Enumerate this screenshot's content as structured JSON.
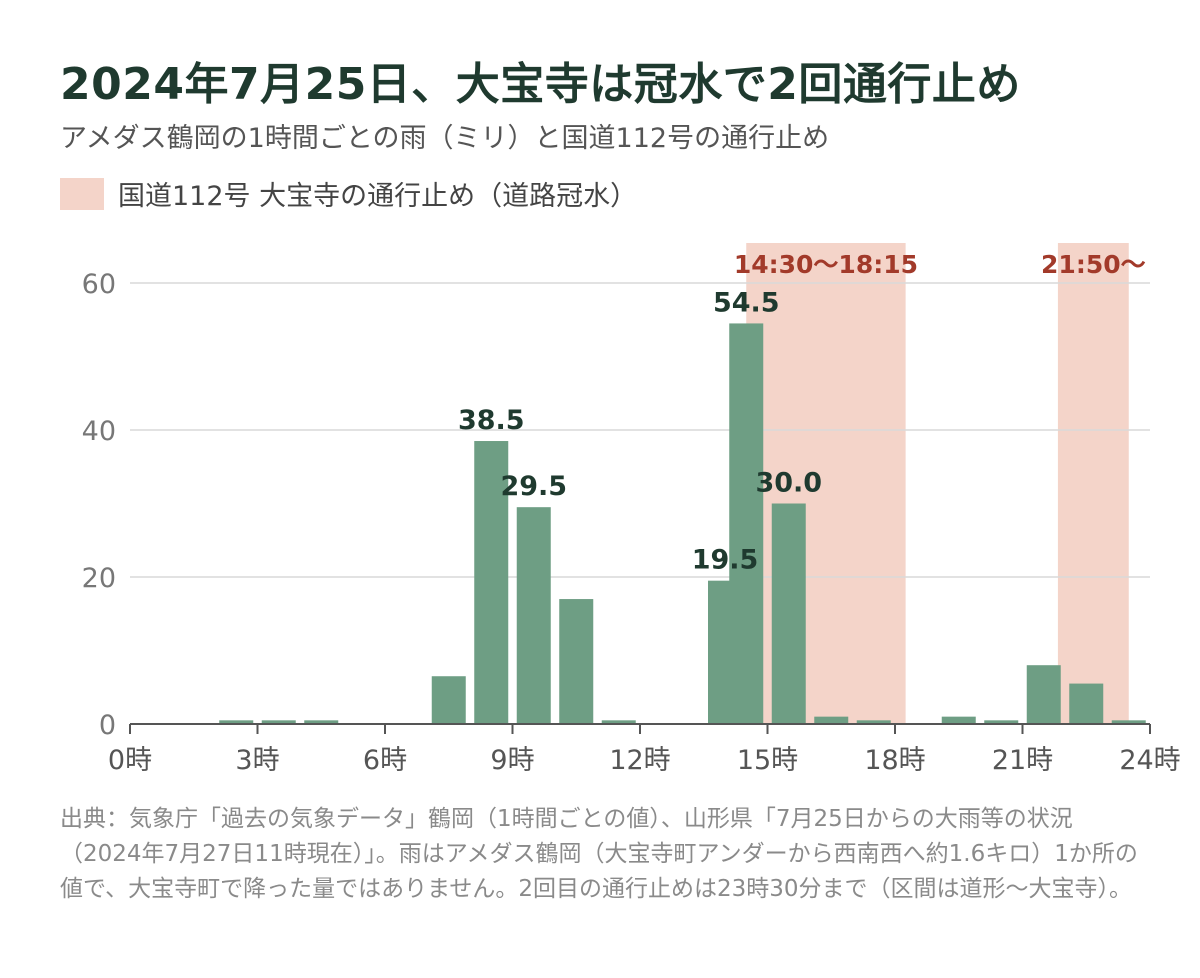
{
  "title": "2024年7月25日、大宝寺は冠水で2回通行止め",
  "subtitle": "アメダス鶴岡の1時間ごとの雨（ミリ）と国道112号の通行止め",
  "legend": {
    "label": "国道112号 大宝寺の通行止め（道路冠水）",
    "color": "#f4d4c9"
  },
  "source": "出典：気象庁「過去の気象データ」鶴岡（1時間ごとの値）、山形県「7月25日からの大雨等の状況（2024年7月27日11時現在）」。雨はアメダス鶴岡（大宝寺町アンダーから西南西へ約1.6キロ）1か所の値で、大宝寺町で降った量ではありません。2回目の通行止めは23時30分まで（区間は道形〜大宝寺）。",
  "chart_data": {
    "type": "bar",
    "title": "2024年7月25日、大宝寺は冠水で2回通行止め",
    "xlabel": "",
    "ylabel": "",
    "x_ticks": [
      {
        "hour": 0,
        "label": "0時"
      },
      {
        "hour": 3,
        "label": "3時"
      },
      {
        "hour": 6,
        "label": "6時"
      },
      {
        "hour": 9,
        "label": "9時"
      },
      {
        "hour": 12,
        "label": "12時"
      },
      {
        "hour": 15,
        "label": "15時"
      },
      {
        "hour": 18,
        "label": "18時"
      },
      {
        "hour": 21,
        "label": "21時"
      },
      {
        "hour": 24,
        "label": "24時"
      }
    ],
    "y_ticks": [
      0,
      20,
      40,
      60
    ],
    "ylim": [
      0,
      60
    ],
    "xlim": [
      0,
      24
    ],
    "grid": true,
    "bar_color": "#6e9e84",
    "values": [
      0,
      0,
      0,
      0.5,
      0.5,
      0.5,
      0,
      0,
      6.5,
      38.5,
      29.5,
      17.0,
      0.5,
      0,
      0,
      19.5,
      54.5,
      30.0,
      1.0,
      0.5,
      0,
      1.0,
      0.5,
      8.0,
      5.5,
      0.5
    ],
    "hours": [
      1,
      2,
      2.5,
      3,
      4,
      5,
      6,
      7,
      8,
      9,
      10,
      11,
      12,
      13,
      14,
      14.5,
      15,
      16,
      17,
      18,
      19,
      20,
      21,
      22,
      23,
      24
    ],
    "data_labels": [
      {
        "hour": 9,
        "value": 38.5,
        "text": "38.5"
      },
      {
        "hour": 10,
        "value": 29.5,
        "text": "29.5"
      },
      {
        "hour": 14.5,
        "value": 19.5,
        "text": "19.5"
      },
      {
        "hour": 15,
        "value": 54.5,
        "text": "54.5"
      },
      {
        "hour": 16,
        "value": 30.0,
        "text": "30.0"
      }
    ],
    "closures": [
      {
        "start": "14:30",
        "end": "18:15",
        "label": "14:30〜18:15",
        "color": "#f4d4c9"
      },
      {
        "start": "21:50",
        "end": "23:30",
        "label": "21:50〜",
        "color": "#f4d4c9"
      }
    ]
  }
}
